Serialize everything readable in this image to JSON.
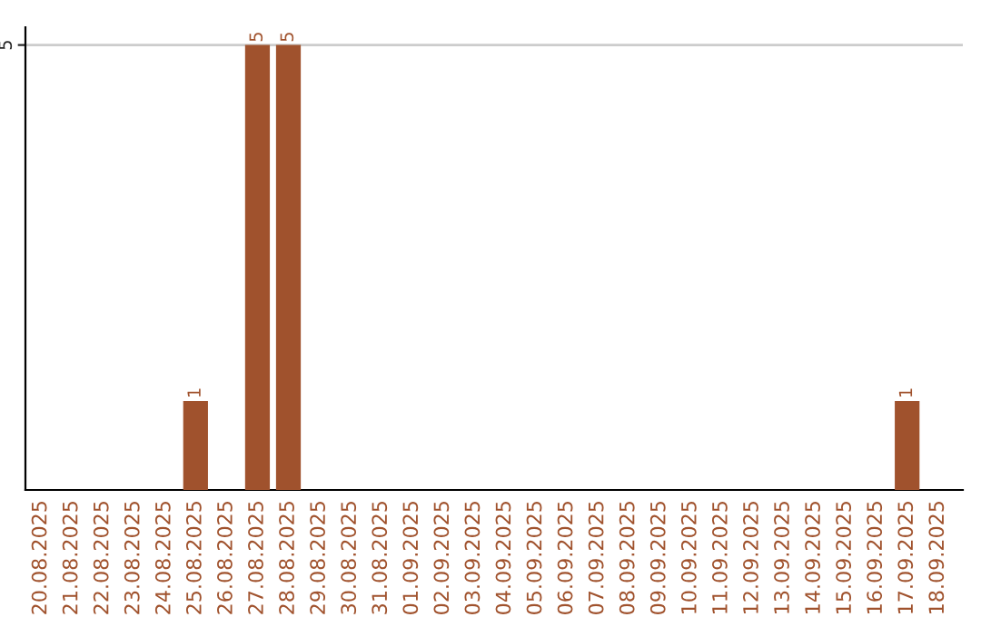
{
  "chart_data": {
    "type": "bar",
    "categories": [
      "20.08.2025",
      "21.08.2025",
      "22.08.2025",
      "23.08.2025",
      "24.08.2025",
      "25.08.2025",
      "26.08.2025",
      "27.08.2025",
      "28.08.2025",
      "29.08.2025",
      "30.08.2025",
      "31.08.2025",
      "01.09.2025",
      "02.09.2025",
      "03.09.2025",
      "04.09.2025",
      "05.09.2025",
      "06.09.2025",
      "07.09.2025",
      "08.09.2025",
      "09.09.2025",
      "10.09.2025",
      "11.09.2025",
      "12.09.2025",
      "13.09.2025",
      "14.09.2025",
      "15.09.2025",
      "16.09.2025",
      "17.09.2025",
      "18.09.2025"
    ],
    "values": [
      0,
      0,
      0,
      0,
      0,
      1,
      0,
      5,
      5,
      0,
      0,
      0,
      0,
      0,
      0,
      0,
      0,
      0,
      0,
      0,
      0,
      0,
      0,
      0,
      0,
      0,
      0,
      0,
      1,
      0
    ],
    "value_labels": [
      null,
      null,
      null,
      null,
      null,
      "1",
      null,
      "5",
      "5",
      null,
      null,
      null,
      null,
      null,
      null,
      null,
      null,
      null,
      null,
      null,
      null,
      null,
      null,
      null,
      null,
      null,
      null,
      null,
      "1",
      null
    ],
    "color": "#a0522d",
    "ylim": [
      0,
      5.2
    ],
    "yticks": [
      5
    ],
    "grid": "y",
    "legend": false
  }
}
